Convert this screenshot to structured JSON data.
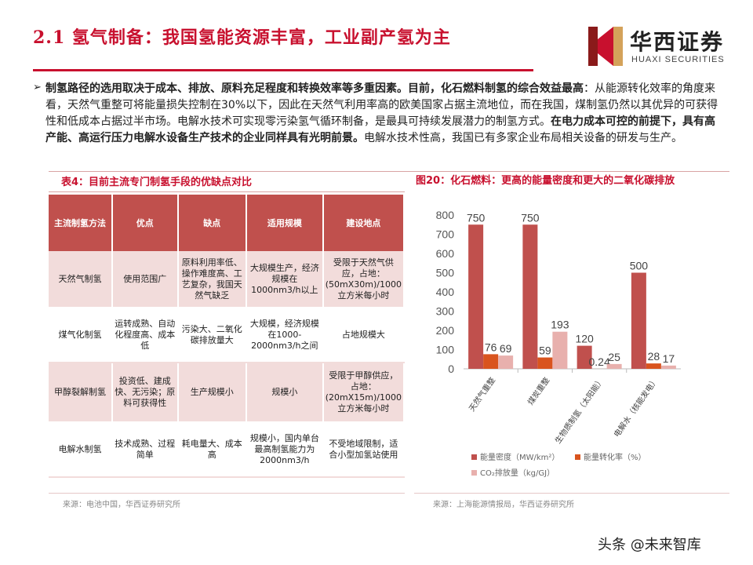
{
  "header": {
    "title": "2.1 氢气制备：我国氢能资源丰富，工业副产氢为主",
    "logo_cn": "华西证券",
    "logo_en": "HUAXI SECURITIES"
  },
  "intro": {
    "bold1": "制氢路径的选用取决于成本、排放、原料充足程度和转换效率等多重因素。目前，化石燃料制氢的综合效益最高",
    "text1": "：从能源转化效率的角度来看，天然气重整可将能量损失控制在30%以下，因此在天然气利用率高的欧美国家占据主流地位，而在我国，煤制氢仍然以其优异的可获得性和低成本占据过半市场。电解水技术可实现零污染氢气循环制备，是最具可持续发展潜力的制氢方式。",
    "bold2": "在电力成本可控的前提下，具有高产能、高运行压力电解水设备生产技术的企业同样具有光明前景。",
    "text2": "电解水技术性高，我国已有多家企业布局相关设备的研发与生产。"
  },
  "table": {
    "title": "表4：目前主流专门制氢手段的优缺点对比",
    "headers": [
      "主流制氢方法",
      "优点",
      "缺点",
      "适用规模",
      "建设地点"
    ],
    "rows": [
      [
        "天然气制氢",
        "使用范围广",
        "原料利用率低、操作难度高、工艺复杂，我国天然气缺乏",
        "大规模生产，经济规模在1000nm3/h以上",
        "受限于天然气供应，占地：(50mX30m)/1000立方米每小时"
      ],
      [
        "煤气化制氢",
        "运转成熟、自动化程度高、成本低",
        "污染大、二氧化碳排放量大",
        "大规模，经济规模在1000-2000nm3/h之间",
        "占地规模大"
      ],
      [
        "甲醇裂解制氢",
        "投资低、建成快、无污染；原料可获得性",
        "生产规模小",
        "规模小",
        "受限于甲醇供应，占地：(20mX15m)/1000立方米每小时"
      ],
      [
        "电解水制氢",
        "技术成熟、过程简单",
        "耗电量大、成本高",
        "规模小，国内单台最高制氢能力为2000nm3/h",
        "不受地域限制，适合小型加氢站使用"
      ]
    ],
    "source": "来源：电池中国，华西证券研究所"
  },
  "chart": {
    "title": "图20：化石燃料：更高的能量密度和更大的二氧化碳排放",
    "source": "来源：上海能源情报局，华西证券研究所"
  },
  "chart_data": {
    "type": "bar",
    "categories": [
      "天然气重整",
      "煤炭重整",
      "生物质制氢（太阳能）",
      "电解水（核能发电）"
    ],
    "series": [
      {
        "name": "能量密度（MW/km²）",
        "values": [
          750,
          750,
          120,
          500
        ],
        "labels": [
          "750",
          "750",
          "120",
          "500"
        ],
        "color": "#c0504d"
      },
      {
        "name": "能量转化率（%）",
        "values": [
          76,
          59,
          0.24,
          28
        ],
        "labels": [
          "76",
          "59",
          "0.24",
          "28"
        ],
        "color": "#d9541e"
      },
      {
        "name": "CO₂排放量（kg/GJ）",
        "values": [
          69,
          193,
          25,
          17
        ],
        "labels": [
          "69",
          "193",
          "25",
          "17"
        ],
        "color": "#e8b0ad"
      }
    ],
    "yticks": [
      0,
      100,
      200,
      300,
      400,
      500,
      600,
      700,
      800
    ],
    "ylim": [
      0,
      800
    ],
    "grid": false,
    "legend_position": "bottom"
  },
  "footer": {
    "watermark": "头条 @未来智库"
  }
}
